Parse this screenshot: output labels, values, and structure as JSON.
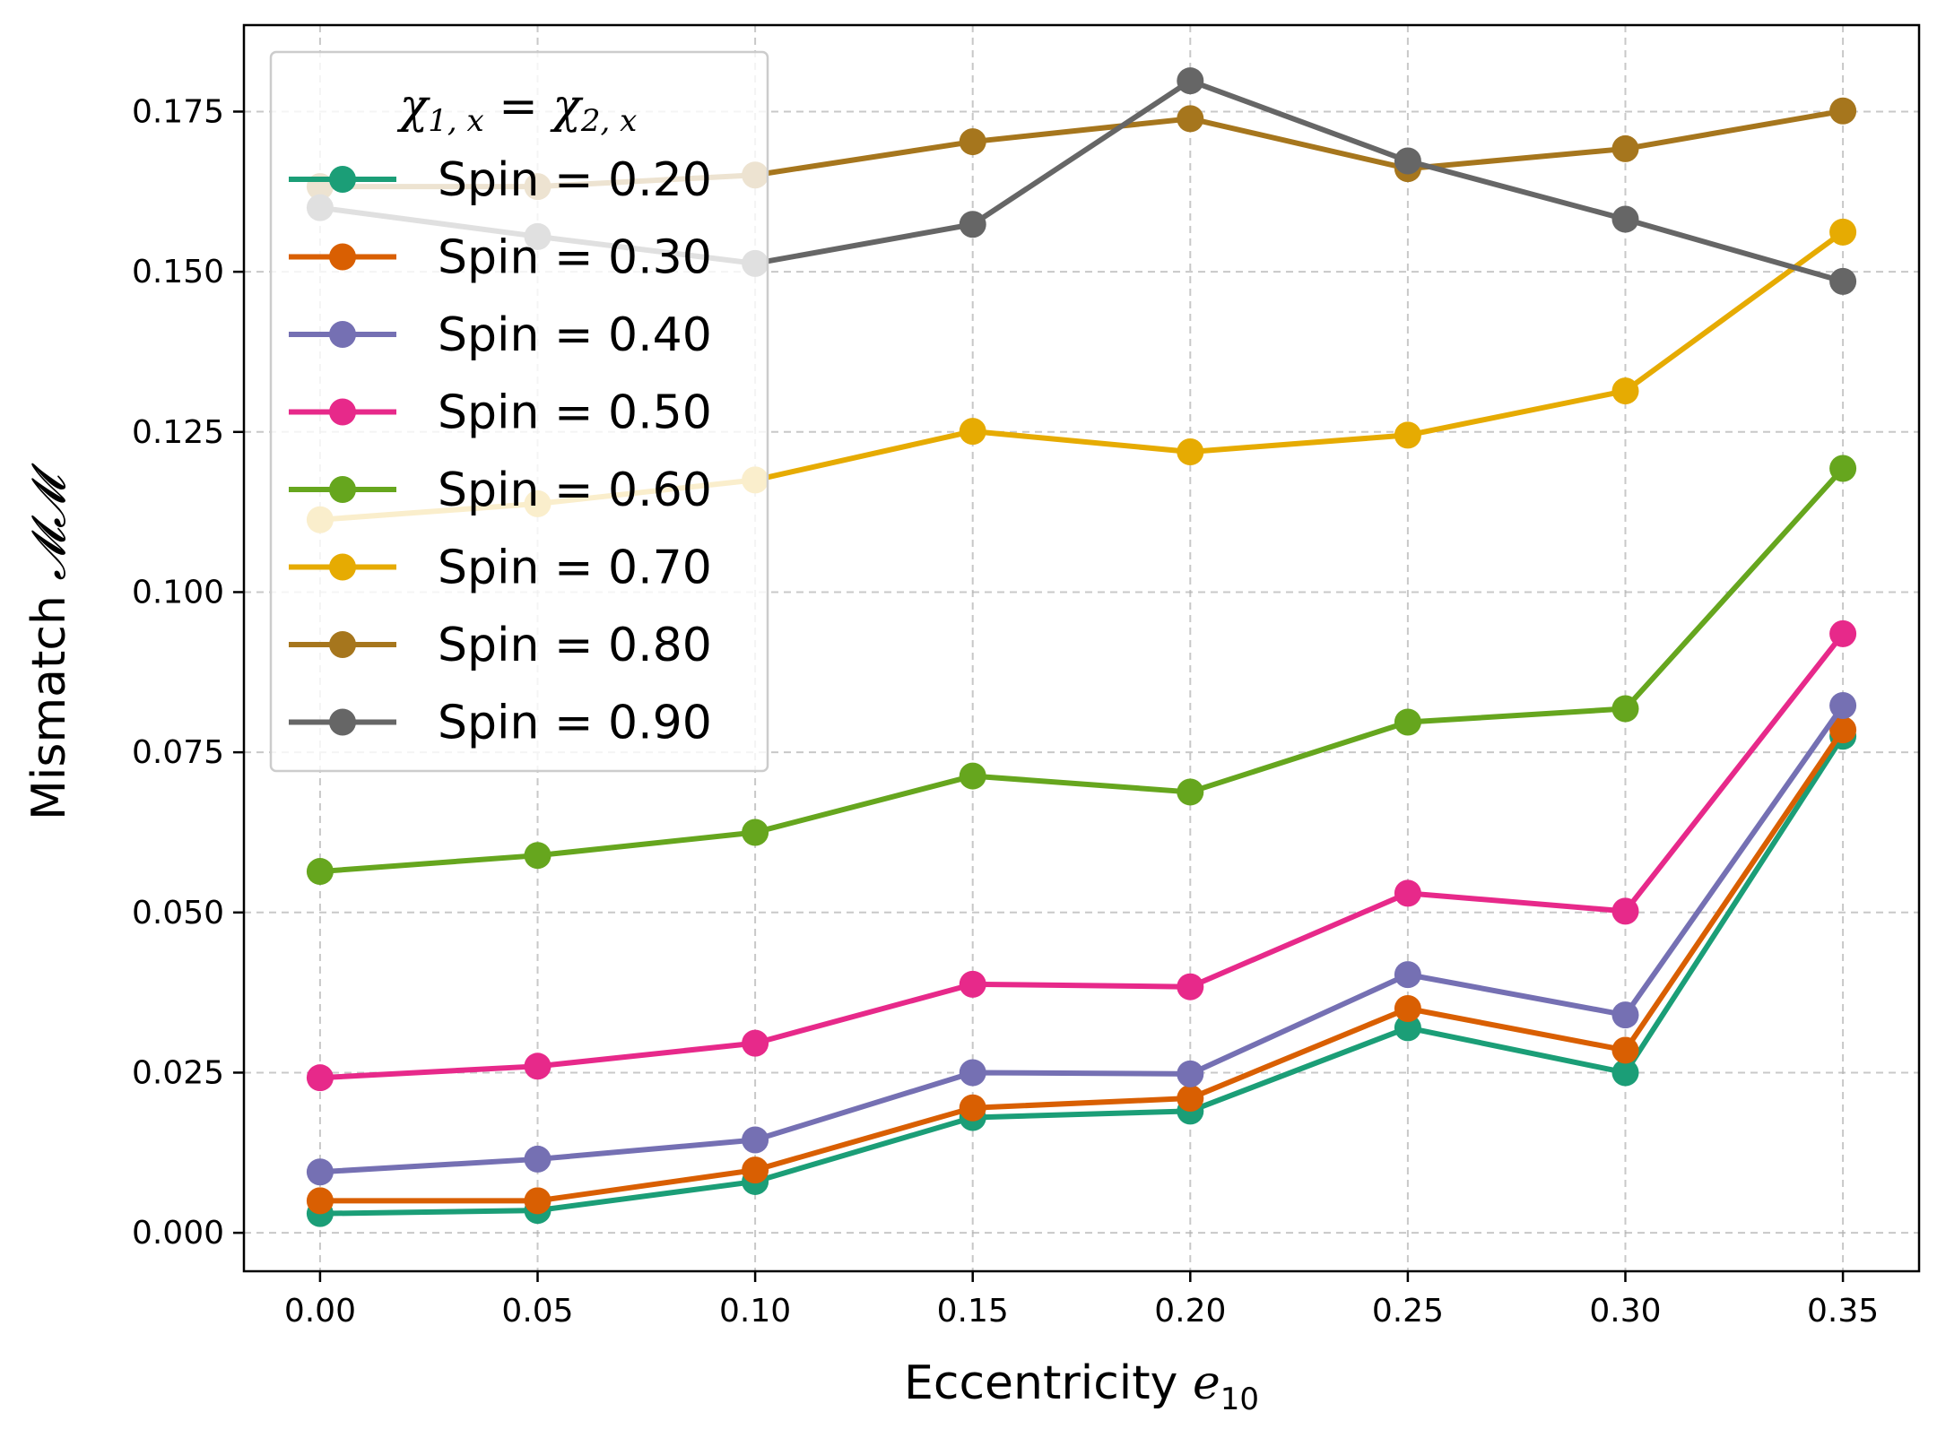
{
  "chart_data": {
    "type": "line",
    "xlabel": "Eccentricity",
    "xlabel_symbol": "e",
    "xlabel_subscript": "10",
    "ylabel": "Mismatch",
    "ylabel_symbol": "𝓜𝓜",
    "legend_title_parts": {
      "chi": "χ",
      "sub1": "1, x",
      "equals": " = ",
      "sub2": "2, x"
    },
    "legend_position": "upper-left",
    "grid": true,
    "xlim": [
      -0.0175,
      0.3675
    ],
    "ylim": [
      -0.006,
      0.1885
    ],
    "x": [
      0.0,
      0.05,
      0.1,
      0.15,
      0.2,
      0.25,
      0.3,
      0.35
    ],
    "x_tick_labels": [
      "0.00",
      "0.05",
      "0.10",
      "0.15",
      "0.20",
      "0.25",
      "0.30",
      "0.35"
    ],
    "y_ticks": [
      0.0,
      0.025,
      0.05,
      0.075,
      0.1,
      0.125,
      0.15,
      0.175
    ],
    "y_tick_labels": [
      "0.000",
      "0.025",
      "0.050",
      "0.075",
      "0.100",
      "0.125",
      "0.150",
      "0.175"
    ],
    "series": [
      {
        "name": "Spin = 0.20",
        "color": "#1b9e77",
        "values": [
          0.003,
          0.0035,
          0.008,
          0.018,
          0.019,
          0.032,
          0.025,
          0.0775
        ]
      },
      {
        "name": "Spin = 0.30",
        "color": "#d95f02",
        "values": [
          0.005,
          0.005,
          0.0098,
          0.0195,
          0.021,
          0.035,
          0.0285,
          0.0785
        ]
      },
      {
        "name": "Spin = 0.40",
        "color": "#7570b3",
        "values": [
          0.0095,
          0.0115,
          0.0145,
          0.025,
          0.0248,
          0.0403,
          0.034,
          0.0823
        ]
      },
      {
        "name": "Spin = 0.50",
        "color": "#e7298a",
        "values": [
          0.0242,
          0.026,
          0.0296,
          0.0388,
          0.0384,
          0.053,
          0.0502,
          0.0935
        ]
      },
      {
        "name": "Spin = 0.60",
        "color": "#66a61e",
        "values": [
          0.0564,
          0.0589,
          0.0625,
          0.0713,
          0.0688,
          0.0797,
          0.0818,
          0.1193
        ]
      },
      {
        "name": "Spin = 0.70",
        "color": "#e6ab02",
        "values": [
          0.1113,
          0.1138,
          0.1175,
          0.1251,
          0.1219,
          0.1245,
          0.1314,
          0.1562
        ]
      },
      {
        "name": "Spin = 0.80",
        "color": "#a6761d",
        "values": [
          0.1633,
          0.1633,
          0.1651,
          0.1703,
          0.1739,
          0.1661,
          0.1692,
          0.1751
        ]
      },
      {
        "name": "Spin = 0.90",
        "color": "#666666",
        "values": [
          0.16,
          0.1555,
          0.1513,
          0.1574,
          0.1798,
          0.1673,
          0.1582,
          0.1485
        ]
      }
    ]
  }
}
